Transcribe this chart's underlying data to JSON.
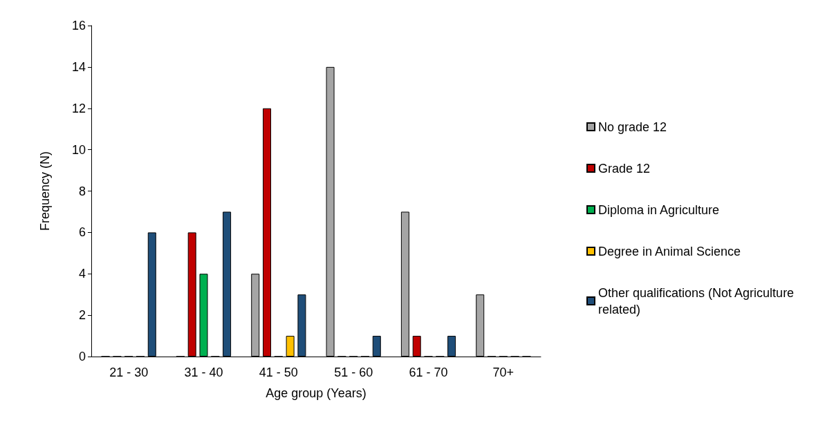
{
  "chart_data": {
    "type": "bar",
    "xlabel": "Age group (Years)",
    "ylabel": "Frequency (N)",
    "categories": [
      "21 - 30",
      "31 - 40",
      "41 - 50",
      "51 - 60",
      "61 - 70",
      "70+"
    ],
    "series": [
      {
        "name": "No grade 12",
        "color": "#a5a5a5",
        "values": [
          0,
          0,
          4,
          14,
          7,
          3
        ]
      },
      {
        "name": "Grade 12",
        "color": "#c00000",
        "values": [
          0,
          6,
          12,
          0,
          1,
          0
        ]
      },
      {
        "name": "Diploma in Agriculture",
        "color": "#00b050",
        "values": [
          0,
          4,
          0,
          0,
          0,
          0
        ]
      },
      {
        "name": "Degree in Animal Science",
        "color": "#ffc000",
        "values": [
          0,
          0,
          1,
          0,
          0,
          0
        ]
      },
      {
        "name": "Other qualifications (Not Agriculture related)",
        "color": "#1f4e79",
        "values": [
          6,
          7,
          3,
          1,
          1,
          0
        ]
      }
    ],
    "ylim": [
      0,
      16
    ],
    "yticks": [
      0,
      2,
      4,
      6,
      8,
      10,
      12,
      14,
      16
    ],
    "grid": false,
    "legend": "right"
  }
}
